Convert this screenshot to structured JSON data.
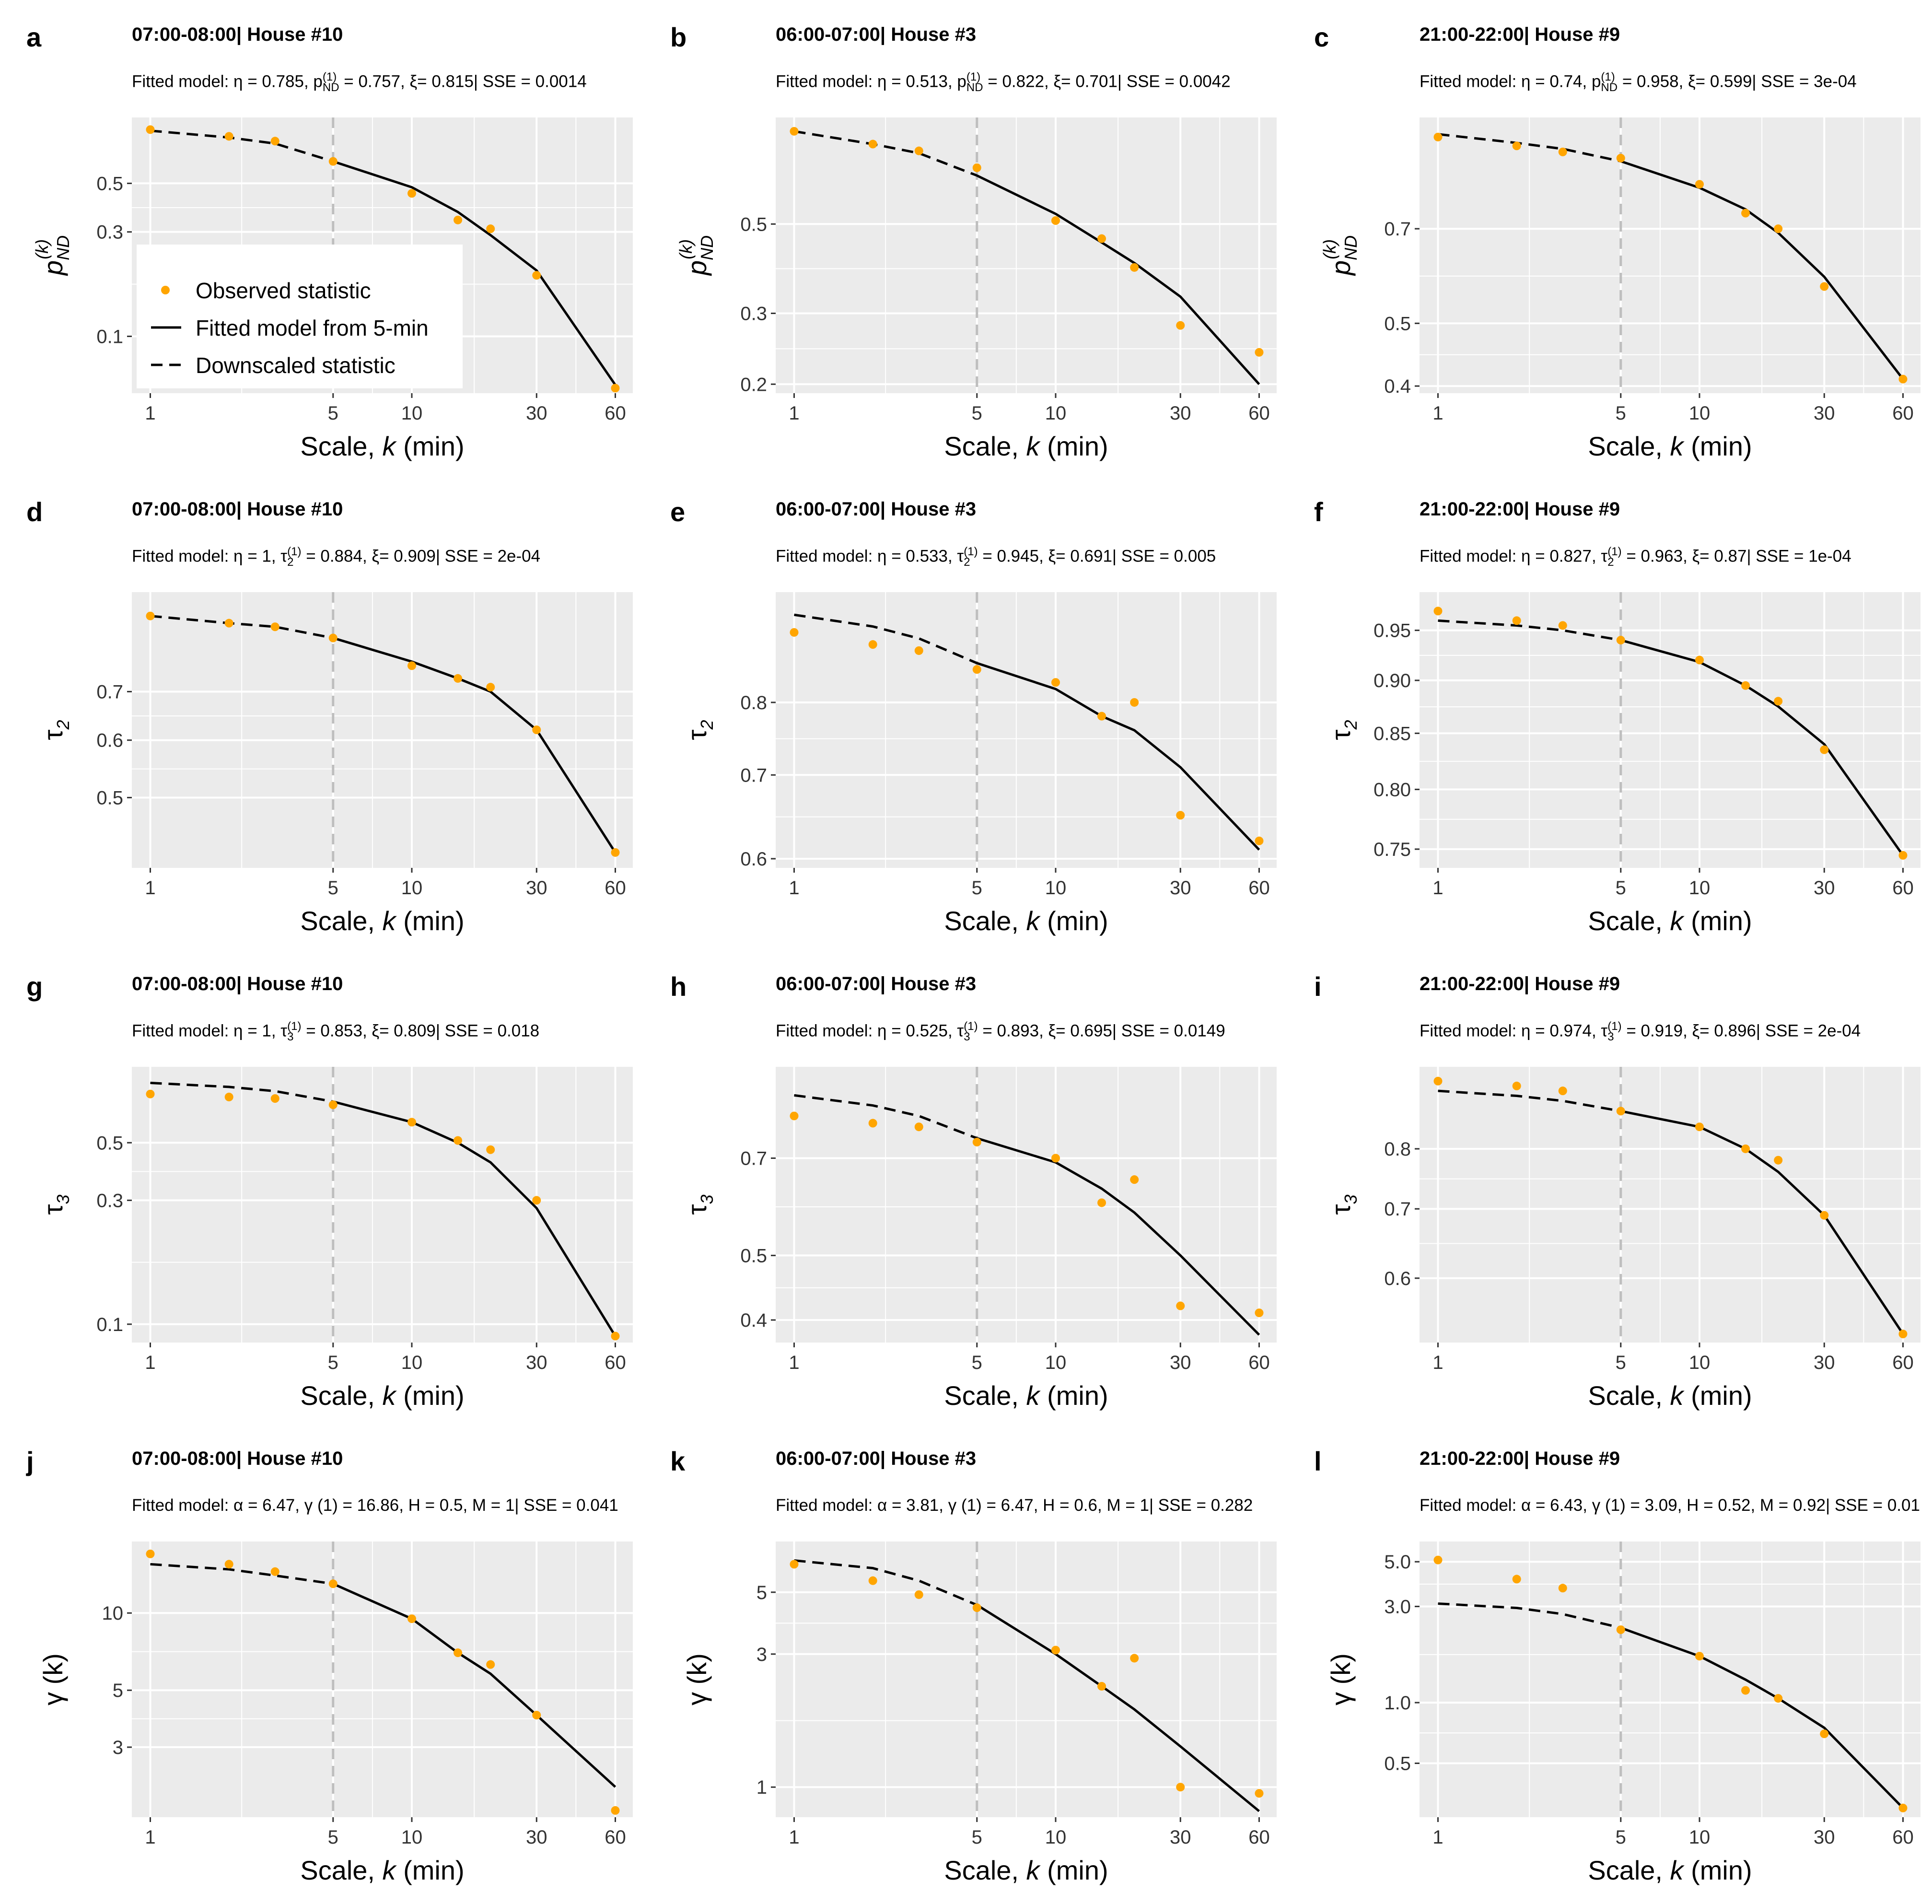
{
  "legend": {
    "observed": "Observed statistic",
    "fitted": "Fitted model from 5-min",
    "downscaled": "Downscaled statistic",
    "colors": {
      "observed": "#FFA500",
      "fitted": "#000000",
      "downscaled": "#000000",
      "reference": "#BEBEBE",
      "panel_bg": "#EBEBEB"
    }
  },
  "chart_data": [
    {
      "panel": "a",
      "type": "line",
      "scale": "log",
      "title": "07:00-08:00| House #10",
      "subtitle": {
        "before": "Fitted model: η = 0.785, p",
        "sub": "ND",
        "sup": "(1)",
        "after": " = 0.757, ξ= 0.815| SSE = 0.0014"
      },
      "xlabel": "Scale, k (min)",
      "ylabel": {
        "main": "p",
        "sub": "ND",
        "sup": "(k)"
      },
      "xlim": [
        0.85,
        70
      ],
      "ylim": [
        0.055,
        1.0
      ],
      "xticks": [
        1,
        5,
        10,
        30,
        60
      ],
      "yticks": [
        0.1,
        0.3,
        0.5
      ],
      "ytick_labels": [
        "0.1",
        "0.3",
        "0.5"
      ],
      "reference_x": 5,
      "observed": {
        "x": [
          1,
          2,
          3,
          5,
          10,
          15,
          20,
          30,
          60
        ],
        "y": [
          0.88,
          0.82,
          0.78,
          0.63,
          0.45,
          0.34,
          0.31,
          0.19,
          0.058
        ]
      },
      "downscaled": {
        "x": [
          1,
          2,
          3,
          5
        ],
        "y": [
          0.87,
          0.81,
          0.76,
          0.63
        ]
      },
      "fitted": {
        "x": [
          5,
          10,
          15,
          20,
          30,
          60
        ],
        "y": [
          0.63,
          0.48,
          0.37,
          0.29,
          0.2,
          0.06
        ]
      },
      "show_legend": true
    },
    {
      "panel": "b",
      "type": "line",
      "scale": "log",
      "title": "06:00-07:00| House #3",
      "subtitle": {
        "before": "Fitted model: η = 0.513, p",
        "sub": "ND",
        "sup": "(1)",
        "after": " = 0.822, ξ= 0.701| SSE = 0.0042"
      },
      "xlabel": "Scale, k (min)",
      "ylabel": {
        "main": "p",
        "sub": "ND",
        "sup": "(k)"
      },
      "xlim": [
        0.85,
        70
      ],
      "ylim": [
        0.19,
        0.92
      ],
      "xticks": [
        1,
        5,
        10,
        30,
        60
      ],
      "yticks": [
        0.2,
        0.3,
        0.5
      ],
      "ytick_labels": [
        "0.2",
        "0.3",
        "0.5"
      ],
      "reference_x": 5,
      "observed": {
        "x": [
          1,
          2,
          3,
          5,
          10,
          15,
          20,
          30,
          60
        ],
        "y": [
          0.85,
          0.79,
          0.76,
          0.69,
          0.51,
          0.46,
          0.39,
          0.28,
          0.24
        ]
      },
      "downscaled": {
        "x": [
          1,
          2,
          3,
          5
        ],
        "y": [
          0.85,
          0.79,
          0.75,
          0.66
        ]
      },
      "fitted": {
        "x": [
          5,
          10,
          15,
          20,
          30,
          60
        ],
        "y": [
          0.66,
          0.53,
          0.45,
          0.4,
          0.33,
          0.2
        ]
      },
      "show_legend": false
    },
    {
      "panel": "c",
      "type": "line",
      "scale": "log",
      "title": "21:00-22:00| House #9",
      "subtitle": {
        "before": "Fitted model: η = 0.74, p",
        "sub": "ND",
        "sup": "(1)",
        "after": " = 0.958, ξ= 0.599| SSE = 3e-04"
      },
      "xlabel": "Scale, k (min)",
      "ylabel": {
        "main": "p",
        "sub": "ND",
        "sup": "(k)"
      },
      "xlim": [
        0.85,
        70
      ],
      "ylim": [
        0.39,
        1.04
      ],
      "xticks": [
        1,
        5,
        10,
        30,
        60
      ],
      "yticks": [
        0.4,
        0.5,
        0.7
      ],
      "ytick_labels": [
        "0.4",
        "0.5",
        "0.7"
      ],
      "reference_x": 5,
      "observed": {
        "x": [
          1,
          2,
          3,
          5,
          10,
          15,
          20,
          30,
          60
        ],
        "y": [
          0.97,
          0.94,
          0.92,
          0.9,
          0.82,
          0.74,
          0.7,
          0.57,
          0.41
        ]
      },
      "downscaled": {
        "x": [
          1,
          2,
          3,
          5
        ],
        "y": [
          0.98,
          0.95,
          0.93,
          0.89
        ]
      },
      "fitted": {
        "x": [
          5,
          10,
          15,
          20,
          30,
          60
        ],
        "y": [
          0.89,
          0.81,
          0.75,
          0.69,
          0.59,
          0.41
        ]
      },
      "show_legend": false
    },
    {
      "panel": "d",
      "type": "line",
      "scale": "log",
      "title": "07:00-08:00| House #10",
      "subtitle": {
        "before": "Fitted model: η = 1, τ",
        "sub": "2",
        "sup": "(1)",
        "after": " = 0.884, ξ= 0.909| SSE = 2e-04"
      },
      "xlabel": "Scale, k (min)",
      "ylabel": {
        "main": "τ",
        "sub": "2",
        "sup": ""
      },
      "xlim": [
        0.85,
        70
      ],
      "ylim": [
        0.4,
        0.96
      ],
      "xticks": [
        1,
        5,
        10,
        30,
        60
      ],
      "yticks": [
        0.5,
        0.6,
        0.7
      ],
      "ytick_labels": [
        "0.5",
        "0.6",
        "0.7"
      ],
      "reference_x": 5,
      "observed": {
        "x": [
          1,
          2,
          3,
          5,
          10,
          15,
          20,
          30,
          60
        ],
        "y": [
          0.89,
          0.87,
          0.86,
          0.83,
          0.76,
          0.73,
          0.71,
          0.62,
          0.42
        ]
      },
      "downscaled": {
        "x": [
          1,
          2,
          3,
          5
        ],
        "y": [
          0.89,
          0.87,
          0.86,
          0.83
        ]
      },
      "fitted": {
        "x": [
          5,
          10,
          15,
          20,
          30,
          60
        ],
        "y": [
          0.83,
          0.77,
          0.73,
          0.7,
          0.62,
          0.42
        ]
      },
      "show_legend": false
    },
    {
      "panel": "e",
      "type": "line",
      "scale": "log",
      "title": "06:00-07:00| House #3",
      "subtitle": {
        "before": "Fitted model: η = 0.533, τ",
        "sub": "2",
        "sup": "(1)",
        "after": " = 0.945, ξ= 0.691| SSE = 0.005"
      },
      "xlabel": "Scale, k (min)",
      "ylabel": {
        "main": "τ",
        "sub": "2",
        "sup": ""
      },
      "xlim": [
        0.85,
        70
      ],
      "ylim": [
        0.59,
        0.98
      ],
      "xticks": [
        1,
        5,
        10,
        30,
        60
      ],
      "yticks": [
        0.6,
        0.7,
        0.8
      ],
      "ytick_labels": [
        "0.6",
        "0.7",
        "0.8"
      ],
      "reference_x": 5,
      "observed": {
        "x": [
          1,
          2,
          3,
          5,
          10,
          15,
          20,
          30,
          60
        ],
        "y": [
          0.91,
          0.89,
          0.88,
          0.85,
          0.83,
          0.78,
          0.8,
          0.65,
          0.62
        ]
      },
      "downscaled": {
        "x": [
          1,
          2,
          3,
          5
        ],
        "y": [
          0.94,
          0.92,
          0.9,
          0.86
        ]
      },
      "fitted": {
        "x": [
          5,
          10,
          15,
          20,
          30,
          60
        ],
        "y": [
          0.86,
          0.82,
          0.78,
          0.76,
          0.71,
          0.61
        ]
      },
      "show_legend": false
    },
    {
      "panel": "f",
      "type": "line",
      "scale": "log",
      "title": "21:00-22:00| House #9",
      "subtitle": {
        "before": "Fitted model: η = 0.827, τ",
        "sub": "2",
        "sup": "(1)",
        "after": " = 0.963, ξ= 0.87| SSE = 1e-04"
      },
      "xlabel": "Scale, k (min)",
      "ylabel": {
        "main": "τ",
        "sub": "2",
        "sup": ""
      },
      "xlim": [
        0.85,
        70
      ],
      "ylim": [
        0.735,
        0.99
      ],
      "xticks": [
        1,
        5,
        10,
        30,
        60
      ],
      "yticks": [
        0.75,
        0.8,
        0.85,
        0.9,
        0.95
      ],
      "ytick_labels": [
        "0.75",
        "0.80",
        "0.85",
        "0.90",
        "0.95"
      ],
      "reference_x": 5,
      "observed": {
        "x": [
          1,
          2,
          3,
          5,
          10,
          15,
          20,
          30,
          60
        ],
        "y": [
          0.97,
          0.96,
          0.955,
          0.94,
          0.92,
          0.895,
          0.88,
          0.835,
          0.745
        ]
      },
      "downscaled": {
        "x": [
          1,
          2,
          3,
          5
        ],
        "y": [
          0.96,
          0.955,
          0.95,
          0.94
        ]
      },
      "fitted": {
        "x": [
          5,
          10,
          15,
          20,
          30,
          60
        ],
        "y": [
          0.94,
          0.918,
          0.895,
          0.875,
          0.84,
          0.745
        ]
      },
      "show_legend": false
    },
    {
      "panel": "g",
      "type": "line",
      "scale": "log",
      "title": "07:00-08:00| House #10",
      "subtitle": {
        "before": "Fitted model: η = 1, τ",
        "sub": "3",
        "sup": "(1)",
        "after": " = 0.853, ξ= 0.809| SSE = 0.018"
      },
      "xlabel": "Scale, k (min)",
      "ylabel": {
        "main": "τ",
        "sub": "3",
        "sup": ""
      },
      "xlim": [
        0.85,
        70
      ],
      "ylim": [
        0.085,
        0.98
      ],
      "xticks": [
        1,
        5,
        10,
        30,
        60
      ],
      "yticks": [
        0.1,
        0.3,
        0.5
      ],
      "ytick_labels": [
        "0.1",
        "0.3",
        "0.5"
      ],
      "reference_x": 5,
      "observed": {
        "x": [
          1,
          2,
          3,
          5,
          10,
          15,
          20,
          30,
          60
        ],
        "y": [
          0.77,
          0.75,
          0.74,
          0.7,
          0.6,
          0.51,
          0.47,
          0.3,
          0.09
        ]
      },
      "downscaled": {
        "x": [
          1,
          2,
          3,
          5
        ],
        "y": [
          0.85,
          0.82,
          0.79,
          0.72
        ]
      },
      "fitted": {
        "x": [
          5,
          10,
          15,
          20,
          30,
          60
        ],
        "y": [
          0.72,
          0.6,
          0.5,
          0.42,
          0.28,
          0.09
        ]
      },
      "show_legend": false
    },
    {
      "panel": "h",
      "type": "line",
      "scale": "log",
      "title": "06:00-07:00| House #3",
      "subtitle": {
        "before": "Fitted model: η = 0.525, τ",
        "sub": "3",
        "sup": "(1)",
        "after": " = 0.893, ξ= 0.695| SSE = 0.0149"
      },
      "xlabel": "Scale, k (min)",
      "ylabel": {
        "main": "τ",
        "sub": "3",
        "sup": ""
      },
      "xlim": [
        0.85,
        70
      ],
      "ylim": [
        0.37,
        0.96
      ],
      "xticks": [
        1,
        5,
        10,
        30,
        60
      ],
      "yticks": [
        0.4,
        0.5,
        0.7
      ],
      "ytick_labels": [
        "0.4",
        "0.5",
        "0.7"
      ],
      "reference_x": 5,
      "observed": {
        "x": [
          1,
          2,
          3,
          5,
          10,
          15,
          20,
          30,
          60
        ],
        "y": [
          0.81,
          0.79,
          0.78,
          0.74,
          0.7,
          0.6,
          0.65,
          0.42,
          0.41
        ]
      },
      "downscaled": {
        "x": [
          1,
          2,
          3,
          5
        ],
        "y": [
          0.87,
          0.84,
          0.81,
          0.75
        ]
      },
      "fitted": {
        "x": [
          5,
          10,
          15,
          20,
          30,
          60
        ],
        "y": [
          0.75,
          0.69,
          0.63,
          0.58,
          0.5,
          0.38
        ]
      },
      "show_legend": false
    },
    {
      "panel": "i",
      "type": "line",
      "scale": "log",
      "title": "21:00-22:00| House #9",
      "subtitle": {
        "before": "Fitted model: η = 0.974, τ",
        "sub": "3",
        "sup": "(1)",
        "after": " = 0.919, ξ= 0.896| SSE = 2e-04"
      },
      "xlabel": "Scale, k (min)",
      "ylabel": {
        "main": "τ",
        "sub": "3",
        "sup": ""
      },
      "xlim": [
        0.85,
        70
      ],
      "ylim": [
        0.52,
        0.96
      ],
      "xticks": [
        1,
        5,
        10,
        30,
        60
      ],
      "yticks": [
        0.6,
        0.7,
        0.8
      ],
      "ytick_labels": [
        "0.6",
        "0.7",
        "0.8"
      ],
      "reference_x": 5,
      "observed": {
        "x": [
          1,
          2,
          3,
          5,
          10,
          15,
          20,
          30,
          60
        ],
        "y": [
          0.93,
          0.92,
          0.91,
          0.87,
          0.84,
          0.8,
          0.78,
          0.69,
          0.53
        ]
      },
      "downscaled": {
        "x": [
          1,
          2,
          3,
          5
        ],
        "y": [
          0.91,
          0.9,
          0.89,
          0.87
        ]
      },
      "fitted": {
        "x": [
          5,
          10,
          15,
          20,
          30,
          60
        ],
        "y": [
          0.87,
          0.84,
          0.8,
          0.76,
          0.69,
          0.53
        ]
      },
      "show_legend": false
    },
    {
      "panel": "j",
      "type": "line",
      "scale": "log-log",
      "title": "07:00-08:00| House #10",
      "subtitle": {
        "before": "Fitted model: α = 6.47, γ (1) = 16.86, H = 0.5, M = 1| SSE = 0.041",
        "sub": "",
        "sup": "",
        "after": ""
      },
      "xlabel": "Scale, k (min)",
      "ylabel": {
        "main": "γ (k)",
        "sub": "",
        "sup": ""
      },
      "xlim": [
        0.85,
        70
      ],
      "ylim": [
        1.6,
        19
      ],
      "xticks": [
        1,
        5,
        10,
        30,
        60
      ],
      "yticks": [
        3,
        5,
        10
      ],
      "ytick_labels": [
        "3",
        "5",
        "10"
      ],
      "reference_x": 5,
      "observed": {
        "x": [
          1,
          2,
          3,
          5,
          10,
          15,
          20,
          30,
          60
        ],
        "y": [
          17.0,
          15.5,
          14.5,
          13.0,
          9.5,
          7.0,
          6.3,
          4.0,
          1.7
        ]
      },
      "downscaled": {
        "x": [
          1,
          2,
          3,
          5
        ],
        "y": [
          15.5,
          14.8,
          14.0,
          13.0
        ]
      },
      "fitted": {
        "x": [
          5,
          10,
          15,
          20,
          30,
          60
        ],
        "y": [
          13.0,
          9.5,
          7.0,
          5.8,
          4.0,
          2.1
        ]
      },
      "show_legend": false
    },
    {
      "panel": "k",
      "type": "line",
      "scale": "log-log",
      "title": "06:00-07:00| House #3",
      "subtitle": {
        "before": "Fitted model: α = 3.81, γ (1) = 6.47, H = 0.6, M = 1| SSE = 0.282",
        "sub": "",
        "sup": "",
        "after": ""
      },
      "xlabel": "Scale, k (min)",
      "ylabel": {
        "main": "γ (k)",
        "sub": "",
        "sup": ""
      },
      "xlim": [
        0.85,
        70
      ],
      "ylim": [
        0.78,
        7.6
      ],
      "xticks": [
        1,
        5,
        10,
        30,
        60
      ],
      "yticks": [
        1,
        3,
        5
      ],
      "ytick_labels": [
        "1",
        "3",
        "5"
      ],
      "reference_x": 5,
      "observed": {
        "x": [
          1,
          2,
          3,
          5,
          10,
          15,
          20,
          30,
          60
        ],
        "y": [
          6.3,
          5.5,
          4.9,
          4.4,
          3.1,
          2.3,
          2.9,
          1.0,
          0.95
        ]
      },
      "downscaled": {
        "x": [
          1,
          2,
          3,
          5
        ],
        "y": [
          6.5,
          6.1,
          5.5,
          4.5
        ]
      },
      "fitted": {
        "x": [
          5,
          10,
          15,
          20,
          30,
          60
        ],
        "y": [
          4.5,
          3.0,
          2.3,
          1.9,
          1.4,
          0.82
        ]
      },
      "show_legend": false
    },
    {
      "panel": "l",
      "type": "line",
      "scale": "log-log",
      "title": "21:00-22:00| House #9",
      "subtitle": {
        "before": "Fitted model: α = 6.43, γ (1) = 3.09, H = 0.52, M = 0.92| SSE = 0.01",
        "sub": "",
        "sup": "",
        "after": ""
      },
      "xlabel": "Scale, k (min)",
      "ylabel": {
        "main": "γ (k)",
        "sub": "",
        "sup": ""
      },
      "xlim": [
        0.85,
        70
      ],
      "ylim": [
        0.27,
        6.3
      ],
      "xticks": [
        1,
        5,
        10,
        30,
        60
      ],
      "yticks": [
        0.5,
        1.0,
        3.0,
        5.0
      ],
      "ytick_labels": [
        "0.5",
        "1.0",
        "3.0",
        "5.0"
      ],
      "reference_x": 5,
      "observed": {
        "x": [
          1,
          2,
          3,
          5,
          10,
          15,
          20,
          30,
          60
        ],
        "y": [
          5.1,
          4.1,
          3.7,
          2.3,
          1.7,
          1.15,
          1.05,
          0.7,
          0.3
        ]
      },
      "downscaled": {
        "x": [
          1,
          2,
          3,
          5
        ],
        "y": [
          3.1,
          2.95,
          2.75,
          2.35
        ]
      },
      "fitted": {
        "x": [
          5,
          10,
          15,
          20,
          30,
          60
        ],
        "y": [
          2.35,
          1.7,
          1.3,
          1.05,
          0.75,
          0.3
        ]
      },
      "show_legend": false
    }
  ]
}
